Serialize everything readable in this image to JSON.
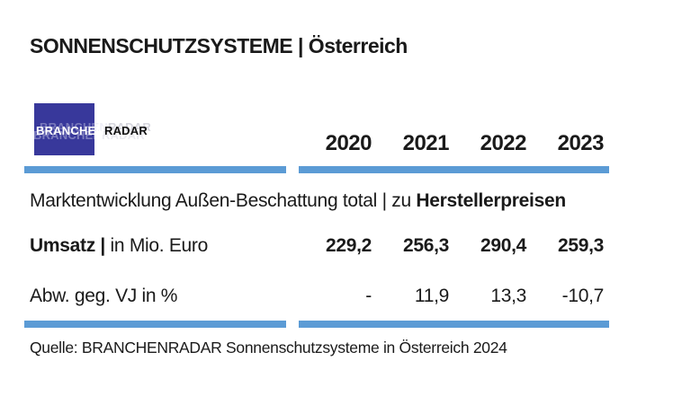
{
  "header": {
    "title": "SONNENSCHUTZSYSTEME | Österreich"
  },
  "logo": {
    "part1": "BRANCHEN",
    "part2": "RADAR"
  },
  "table": {
    "years": [
      "2020",
      "2021",
      "2022",
      "2023"
    ],
    "section_row": {
      "label_regular": "Marktentwicklung Außen-Beschattung total | zu ",
      "label_bold": "Herstellerpreisen"
    },
    "rows": [
      {
        "label_bold": "Umsatz |",
        "label_regular": " in Mio. Euro",
        "values": [
          "229,2",
          "256,3",
          "290,4",
          "259,3"
        ]
      },
      {
        "label_bold": "",
        "label_regular": "Abw. geg. VJ in %",
        "values": [
          "-",
          "11,9",
          "13,3",
          "-10,7"
        ]
      }
    ]
  },
  "source": {
    "text": "Quelle: BRANCHENRADAR Sonnenschutzsysteme in Österreich 2024"
  },
  "colors": {
    "bar_blue": "#5B9BD5",
    "logo_blue": "#38389B",
    "text_black": "#1A1A1A"
  },
  "chart_data": {
    "type": "table",
    "title": "SONNENSCHUTZSYSTEME | Österreich",
    "subtitle": "Marktentwicklung Außen-Beschattung total | zu Herstellerpreisen",
    "categories": [
      "2020",
      "2021",
      "2022",
      "2023"
    ],
    "series": [
      {
        "name": "Umsatz | in Mio. Euro",
        "values": [
          229.2,
          256.3,
          290.4,
          259.3
        ]
      },
      {
        "name": "Abw. geg. VJ in %",
        "values": [
          null,
          11.9,
          13.3,
          -10.7
        ]
      }
    ],
    "source": "Quelle: BRANCHENRADAR Sonnenschutzsysteme in Österreich 2024"
  }
}
